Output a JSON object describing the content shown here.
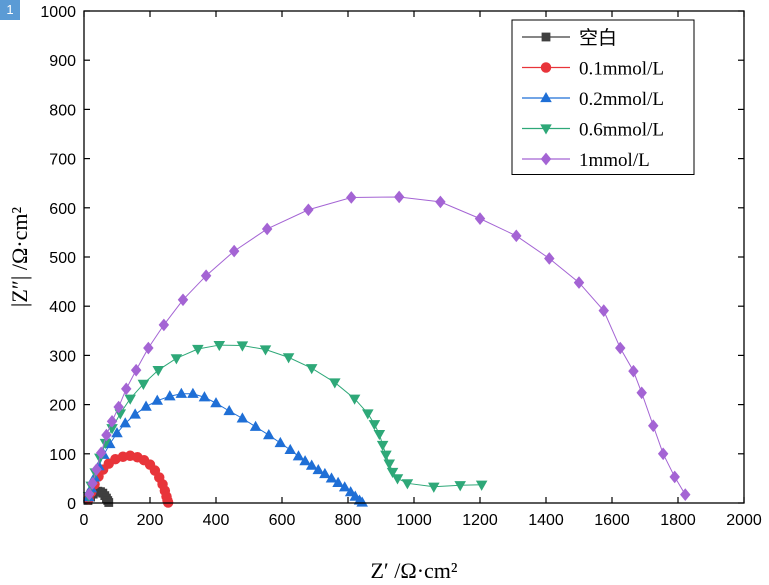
{
  "badge": "1",
  "chart_data": {
    "type": "scatter",
    "title": "",
    "xlabel": "Z′ /Ω·cm²",
    "ylabel": "|Z″| /Ω·cm²",
    "xlim": [
      0,
      2000
    ],
    "ylim": [
      0,
      1000
    ],
    "xticks": [
      0,
      200,
      400,
      600,
      800,
      1000,
      1200,
      1400,
      1600,
      1800,
      2000
    ],
    "yticks": [
      0,
      100,
      200,
      300,
      400,
      500,
      600,
      700,
      800,
      900,
      1000
    ],
    "grid": false,
    "legend_position": "top-right",
    "series": [
      {
        "name": "空白",
        "color": "#3f3f3f",
        "marker": "square",
        "x": [
          12,
          20,
          28,
          35,
          42,
          50,
          57,
          63,
          68,
          72,
          75
        ],
        "y": [
          5,
          12,
          18,
          22,
          24,
          23,
          20,
          15,
          10,
          5,
          1
        ]
      },
      {
        "name": "0.1mmol/L",
        "color": "#e8343a",
        "marker": "circle",
        "x": [
          14,
          22,
          32,
          44,
          58,
          75,
          95,
          118,
          140,
          162,
          182,
          200,
          215,
          228,
          238,
          245,
          250,
          253,
          255
        ],
        "y": [
          8,
          22,
          38,
          54,
          68,
          80,
          89,
          94,
          96,
          93,
          87,
          78,
          66,
          52,
          38,
          25,
          13,
          5,
          1
        ]
      },
      {
        "name": "0.2mmol/L",
        "color": "#1f6fd6",
        "marker": "triangle-up",
        "x": [
          14,
          22,
          32,
          45,
          60,
          78,
          100,
          125,
          155,
          188,
          222,
          260,
          295,
          330,
          365,
          400,
          440,
          480,
          520,
          560,
          595,
          625,
          650,
          670,
          690,
          710,
          730,
          750,
          770,
          790,
          808,
          822,
          835,
          843
        ],
        "y": [
          12,
          30,
          52,
          75,
          98,
          120,
          142,
          162,
          180,
          196,
          208,
          217,
          222,
          222,
          215,
          203,
          187,
          172,
          155,
          138,
          122,
          108,
          95,
          85,
          76,
          67,
          59,
          50,
          41,
          32,
          22,
          13,
          5,
          1
        ]
      },
      {
        "name": "0.6mmol/L",
        "color": "#2ea878",
        "marker": "triangle-down",
        "x": [
          14,
          22,
          34,
          48,
          65,
          85,
          110,
          140,
          180,
          225,
          280,
          345,
          410,
          480,
          550,
          620,
          690,
          760,
          820,
          860,
          880,
          895,
          905,
          915,
          925,
          935,
          950,
          980,
          1060,
          1140,
          1205
        ],
        "y": [
          14,
          35,
          62,
          92,
          122,
          152,
          182,
          212,
          242,
          270,
          294,
          313,
          321,
          320,
          312,
          296,
          274,
          245,
          212,
          182,
          160,
          140,
          118,
          98,
          80,
          63,
          50,
          40,
          33,
          36,
          37
        ]
      },
      {
        "name": "1mmol/L",
        "color": "#a464d4",
        "marker": "diamond",
        "x": [
          16,
          26,
          38,
          52,
          68,
          85,
          105,
          128,
          158,
          195,
          242,
          300,
          370,
          455,
          555,
          680,
          810,
          955,
          1080,
          1200,
          1310,
          1410,
          1500,
          1575,
          1625,
          1665,
          1690,
          1725,
          1755,
          1790,
          1822
        ],
        "y": [
          18,
          40,
          68,
          102,
          138,
          166,
          195,
          232,
          270,
          315,
          362,
          413,
          462,
          512,
          557,
          596,
          621,
          622,
          612,
          578,
          543,
          497,
          448,
          391,
          315,
          268,
          224,
          157,
          100,
          53,
          17
        ]
      }
    ]
  }
}
